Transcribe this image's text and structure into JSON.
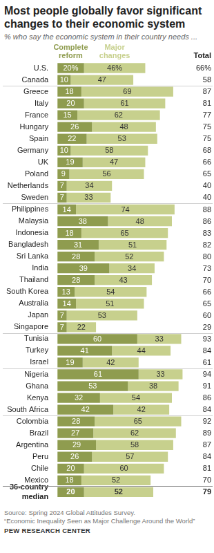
{
  "chart_data": {
    "type": "bar",
    "title": "Most people globally favor significant changes to their economic system",
    "subtitle": "% who say the economic system in their country needs ...",
    "orientation": "horizontal",
    "stacked": true,
    "data_labels": true,
    "tick_labels": "y",
    "grid": false,
    "legend": "top",
    "xlim": [
      0,
      100
    ],
    "xticks": [
      0,
      100
    ],
    "categories": [
      "U.S.",
      "Canada",
      "Greece",
      "Italy",
      "France",
      "Hungary",
      "Spain",
      "Germany",
      "UK",
      "Poland",
      "Netherlands",
      "Sweden",
      "Philippines",
      "Malaysia",
      "Indonesia",
      "Bangladesh",
      "Sri Lanka",
      "India",
      "Thailand",
      "South Korea",
      "Australia",
      "Japan",
      "Singapore",
      "Tunisia",
      "Turkey",
      "Israel",
      "Nigeria",
      "Ghana",
      "Kenya",
      "South Africa",
      "Colombia",
      "Brazil",
      "Argentina",
      "Peru",
      "Chile",
      "Mexico",
      "36-country median"
    ],
    "series": [
      {
        "name": "Complete reform",
        "color": "#8f9c4f",
        "values": [
          20,
          10,
          18,
          20,
          15,
          26,
          22,
          10,
          19,
          9,
          7,
          7,
          14,
          38,
          18,
          31,
          28,
          39,
          28,
          13,
          14,
          7,
          7,
          60,
          41,
          19,
          61,
          53,
          32,
          42,
          28,
          27,
          29,
          26,
          20,
          18,
          20
        ],
        "value_labels": [
          "20%",
          "10",
          "18",
          "20",
          "15",
          "26",
          "22",
          "10",
          "19",
          "9",
          "7",
          "7",
          "14",
          "38",
          "18",
          "31",
          "28",
          "39",
          "28",
          "13",
          "14",
          "7",
          "7",
          "60",
          "41",
          "19",
          "61",
          "53",
          "32",
          "42",
          "28",
          "27",
          "29",
          "26",
          "20",
          "18",
          "20"
        ]
      },
      {
        "name": "Major changes",
        "color": "#c7d08d",
        "values": [
          46,
          47,
          69,
          61,
          62,
          48,
          53,
          58,
          47,
          56,
          34,
          33,
          74,
          48,
          65,
          51,
          52,
          34,
          43,
          54,
          51,
          53,
          22,
          33,
          44,
          42,
          33,
          38,
          54,
          42,
          65,
          62,
          58,
          57,
          60,
          52,
          52
        ],
        "value_labels": [
          "46%",
          "47",
          "69",
          "61",
          "62",
          "48",
          "53",
          "58",
          "47",
          "56",
          "34",
          "33",
          "74",
          "48",
          "65",
          "51",
          "52",
          "34",
          "43",
          "54",
          "51",
          "53",
          "22",
          "33",
          "44",
          "42",
          "33",
          "38",
          "54",
          "42",
          "65",
          "62",
          "58",
          "57",
          "60",
          "52",
          "52"
        ]
      }
    ],
    "totals": {
      "name": "Total",
      "values": [
        66,
        58,
        87,
        81,
        77,
        75,
        75,
        68,
        66,
        65,
        40,
        40,
        88,
        86,
        83,
        82,
        80,
        73,
        70,
        66,
        65,
        60,
        29,
        93,
        84,
        61,
        94,
        91,
        86,
        84,
        92,
        89,
        87,
        84,
        81,
        70,
        79
      ],
      "value_labels": [
        "66%",
        "58",
        "87",
        "81",
        "77",
        "75",
        "75",
        "68",
        "66",
        "65",
        "40",
        "40",
        "88",
        "86",
        "83",
        "82",
        "80",
        "73",
        "70",
        "66",
        "65",
        "60",
        "29",
        "93",
        "84",
        "61",
        "94",
        "91",
        "86",
        "84",
        "92",
        "89",
        "87",
        "84",
        "81",
        "70",
        "79"
      ]
    },
    "source": [
      "Source: Spring 2024 Global Attitudes Survey.",
      "“Economic Inequality Seen as Major Challenge Around the World”"
    ],
    "credit": "PEW RESEARCH CENTER"
  }
}
